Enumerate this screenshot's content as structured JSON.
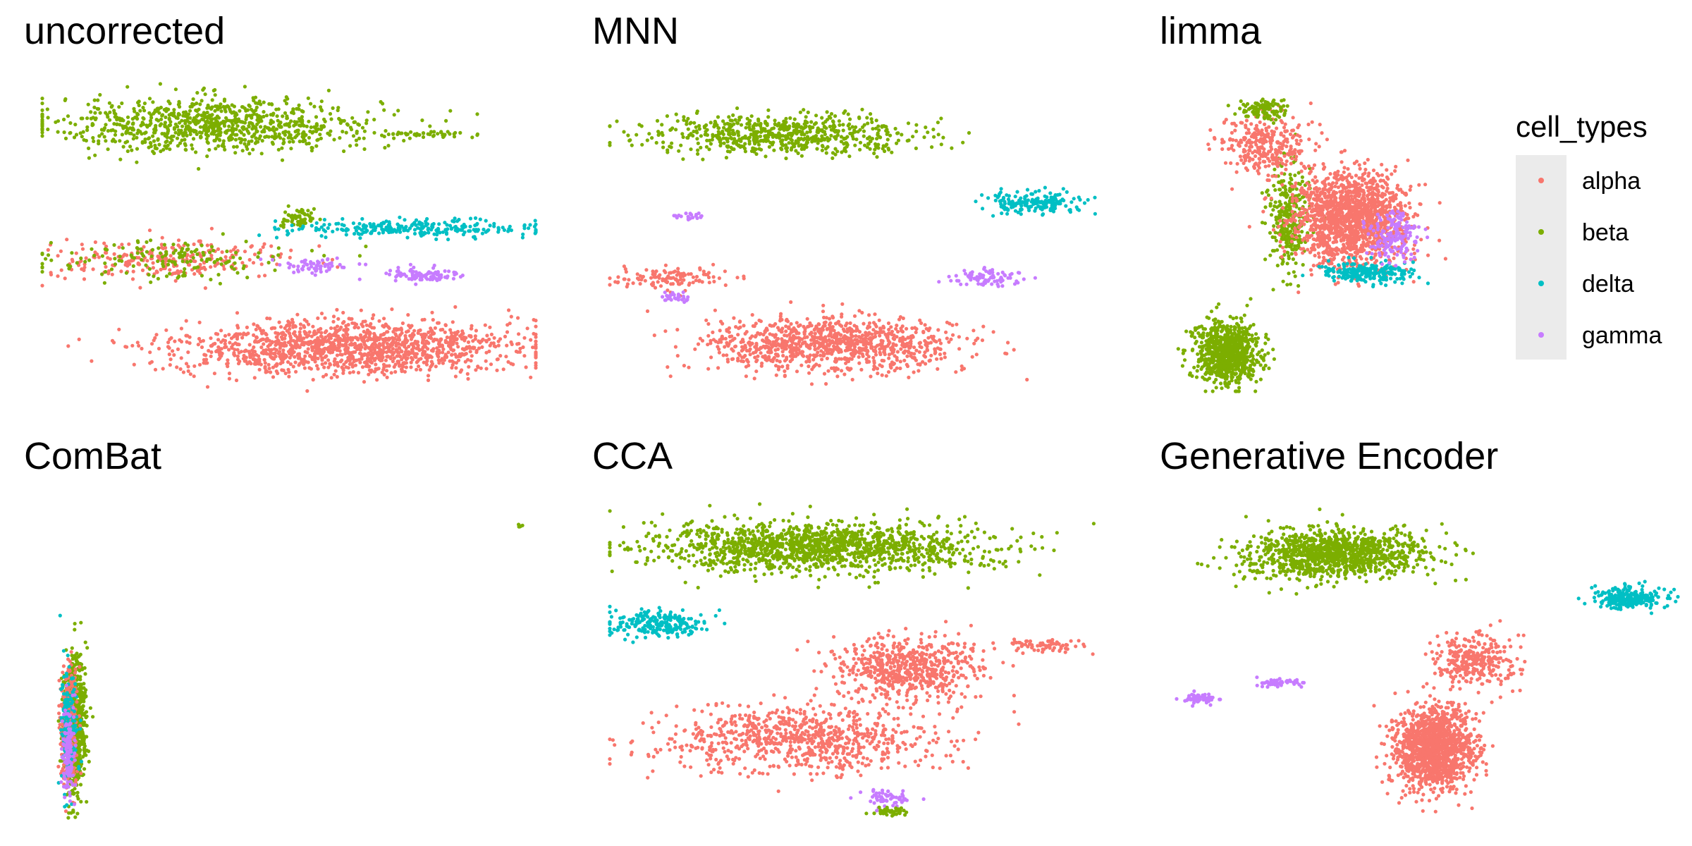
{
  "chart_data": {
    "type": "scatter",
    "facet_titles": [
      "uncorrected",
      "MNN",
      "limma",
      "ComBat",
      "CCA",
      "Generative Encoder"
    ],
    "legend": {
      "title": "cell_types",
      "entries": [
        "alpha",
        "beta",
        "delta",
        "gamma"
      ],
      "placement": "right",
      "colors": {
        "alpha": "#F8766D",
        "beta": "#7CAE00",
        "delta": "#00BFC4",
        "gamma": "#C77CFF"
      }
    },
    "axes": "hidden",
    "grid": false,
    "panels": [
      {
        "title": "uncorrected",
        "clusters": [
          {
            "type": "beta",
            "cx": 0.35,
            "cy": 0.85,
            "sx": 0.5,
            "sy": 0.13,
            "n": 900
          },
          {
            "type": "beta",
            "cx": 0.52,
            "cy": 0.55,
            "sx": 0.05,
            "sy": 0.05,
            "n": 60
          },
          {
            "type": "delta",
            "cx": 0.75,
            "cy": 0.52,
            "sx": 0.38,
            "sy": 0.04,
            "n": 260
          },
          {
            "type": "alpha",
            "cx": 0.26,
            "cy": 0.42,
            "sx": 0.38,
            "sy": 0.09,
            "n": 260
          },
          {
            "type": "beta",
            "cx": 0.26,
            "cy": 0.42,
            "sx": 0.38,
            "sy": 0.09,
            "n": 160
          },
          {
            "type": "gamma",
            "cx": 0.55,
            "cy": 0.4,
            "sx": 0.12,
            "sy": 0.04,
            "n": 60
          },
          {
            "type": "gamma",
            "cx": 0.77,
            "cy": 0.37,
            "sx": 0.12,
            "sy": 0.04,
            "n": 90
          },
          {
            "type": "alpha",
            "cx": 0.62,
            "cy": 0.14,
            "sx": 0.52,
            "sy": 0.13,
            "n": 1400
          },
          {
            "type": "beta",
            "cx": 0.78,
            "cy": 0.82,
            "sx": 0.13,
            "sy": 0.015,
            "n": 50
          }
        ]
      },
      {
        "title": "MNN",
        "clusters": [
          {
            "type": "beta",
            "cx": 0.36,
            "cy": 0.82,
            "sx": 0.42,
            "sy": 0.09,
            "n": 650
          },
          {
            "type": "delta",
            "cx": 0.86,
            "cy": 0.6,
            "sx": 0.16,
            "sy": 0.05,
            "n": 190
          },
          {
            "type": "gamma",
            "cx": 0.16,
            "cy": 0.56,
            "sx": 0.06,
            "sy": 0.02,
            "n": 20
          },
          {
            "type": "alpha",
            "cx": 0.12,
            "cy": 0.36,
            "sx": 0.18,
            "sy": 0.05,
            "n": 120
          },
          {
            "type": "gamma",
            "cx": 0.13,
            "cy": 0.3,
            "sx": 0.05,
            "sy": 0.02,
            "n": 30
          },
          {
            "type": "gamma",
            "cx": 0.76,
            "cy": 0.36,
            "sx": 0.1,
            "sy": 0.04,
            "n": 80
          },
          {
            "type": "alpha",
            "cx": 0.45,
            "cy": 0.15,
            "sx": 0.38,
            "sy": 0.13,
            "n": 1000
          }
        ]
      },
      {
        "title": "limma",
        "clusters": [
          {
            "type": "beta",
            "cx": 0.18,
            "cy": 0.12,
            "sx": 0.16,
            "sy": 0.15,
            "n": 800
          },
          {
            "type": "beta",
            "cx": 0.38,
            "cy": 0.55,
            "sx": 0.1,
            "sy": 0.25,
            "n": 300
          },
          {
            "type": "alpha",
            "cx": 0.58,
            "cy": 0.55,
            "sx": 0.28,
            "sy": 0.22,
            "n": 1500
          },
          {
            "type": "delta",
            "cx": 0.62,
            "cy": 0.38,
            "sx": 0.22,
            "sy": 0.05,
            "n": 220
          },
          {
            "type": "gamma",
            "cx": 0.72,
            "cy": 0.5,
            "sx": 0.14,
            "sy": 0.12,
            "n": 160
          },
          {
            "type": "alpha",
            "cx": 0.3,
            "cy": 0.78,
            "sx": 0.22,
            "sy": 0.14,
            "n": 300
          },
          {
            "type": "beta",
            "cx": 0.3,
            "cy": 0.9,
            "sx": 0.12,
            "sy": 0.05,
            "n": 120
          }
        ]
      },
      {
        "title": "ComBat",
        "clusters": [
          {
            "type": "beta",
            "cx": 0.09,
            "cy": 0.3,
            "sx": 0.03,
            "sy": 0.32,
            "n": 900
          },
          {
            "type": "alpha",
            "cx": 0.08,
            "cy": 0.28,
            "sx": 0.025,
            "sy": 0.28,
            "n": 300
          },
          {
            "type": "delta",
            "cx": 0.08,
            "cy": 0.3,
            "sx": 0.025,
            "sy": 0.3,
            "n": 150
          },
          {
            "type": "gamma",
            "cx": 0.08,
            "cy": 0.22,
            "sx": 0.02,
            "sy": 0.22,
            "n": 120
          },
          {
            "type": "beta",
            "cx": 0.97,
            "cy": 0.93,
            "sx": 0.008,
            "sy": 0.01,
            "n": 6
          }
        ]
      },
      {
        "title": "CCA",
        "clusters": [
          {
            "type": "beta",
            "cx": 0.42,
            "cy": 0.86,
            "sx": 0.52,
            "sy": 0.12,
            "n": 1400
          },
          {
            "type": "delta",
            "cx": 0.1,
            "cy": 0.62,
            "sx": 0.16,
            "sy": 0.06,
            "n": 220
          },
          {
            "type": "alpha",
            "cx": 0.6,
            "cy": 0.48,
            "sx": 0.22,
            "sy": 0.14,
            "n": 600
          },
          {
            "type": "alpha",
            "cx": 0.38,
            "cy": 0.25,
            "sx": 0.42,
            "sy": 0.16,
            "n": 800
          },
          {
            "type": "alpha",
            "cx": 0.88,
            "cy": 0.55,
            "sx": 0.14,
            "sy": 0.03,
            "n": 70
          },
          {
            "type": "gamma",
            "cx": 0.56,
            "cy": 0.06,
            "sx": 0.08,
            "sy": 0.04,
            "n": 60
          },
          {
            "type": "beta",
            "cx": 0.56,
            "cy": 0.02,
            "sx": 0.06,
            "sy": 0.02,
            "n": 40
          }
        ]
      },
      {
        "title": "Generative Encoder",
        "clusters": [
          {
            "type": "beta",
            "cx": 0.32,
            "cy": 0.84,
            "sx": 0.27,
            "sy": 0.12,
            "n": 1100
          },
          {
            "type": "delta",
            "cx": 0.9,
            "cy": 0.7,
            "sx": 0.1,
            "sy": 0.05,
            "n": 260
          },
          {
            "type": "gamma",
            "cx": 0.06,
            "cy": 0.38,
            "sx": 0.05,
            "sy": 0.03,
            "n": 60
          },
          {
            "type": "gamma",
            "cx": 0.21,
            "cy": 0.43,
            "sx": 0.07,
            "sy": 0.02,
            "n": 50
          },
          {
            "type": "alpha",
            "cx": 0.52,
            "cy": 0.22,
            "sx": 0.12,
            "sy": 0.2,
            "n": 1300
          },
          {
            "type": "alpha",
            "cx": 0.6,
            "cy": 0.5,
            "sx": 0.12,
            "sy": 0.12,
            "n": 300
          }
        ]
      }
    ]
  }
}
